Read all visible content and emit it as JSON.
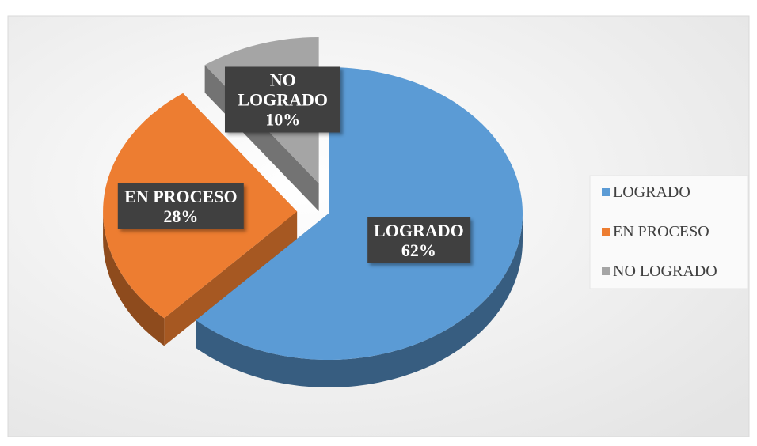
{
  "chart_data": {
    "type": "pie",
    "categories": [
      "LOGRADO",
      "EN PROCESO",
      "NO LOGRADO"
    ],
    "values": [
      62,
      28,
      10
    ],
    "value_labels": [
      "62%",
      "28%",
      "10%"
    ],
    "colors": [
      "#5b9bd5",
      "#ed7d31",
      "#a5a5a5"
    ],
    "legend": "right"
  }
}
